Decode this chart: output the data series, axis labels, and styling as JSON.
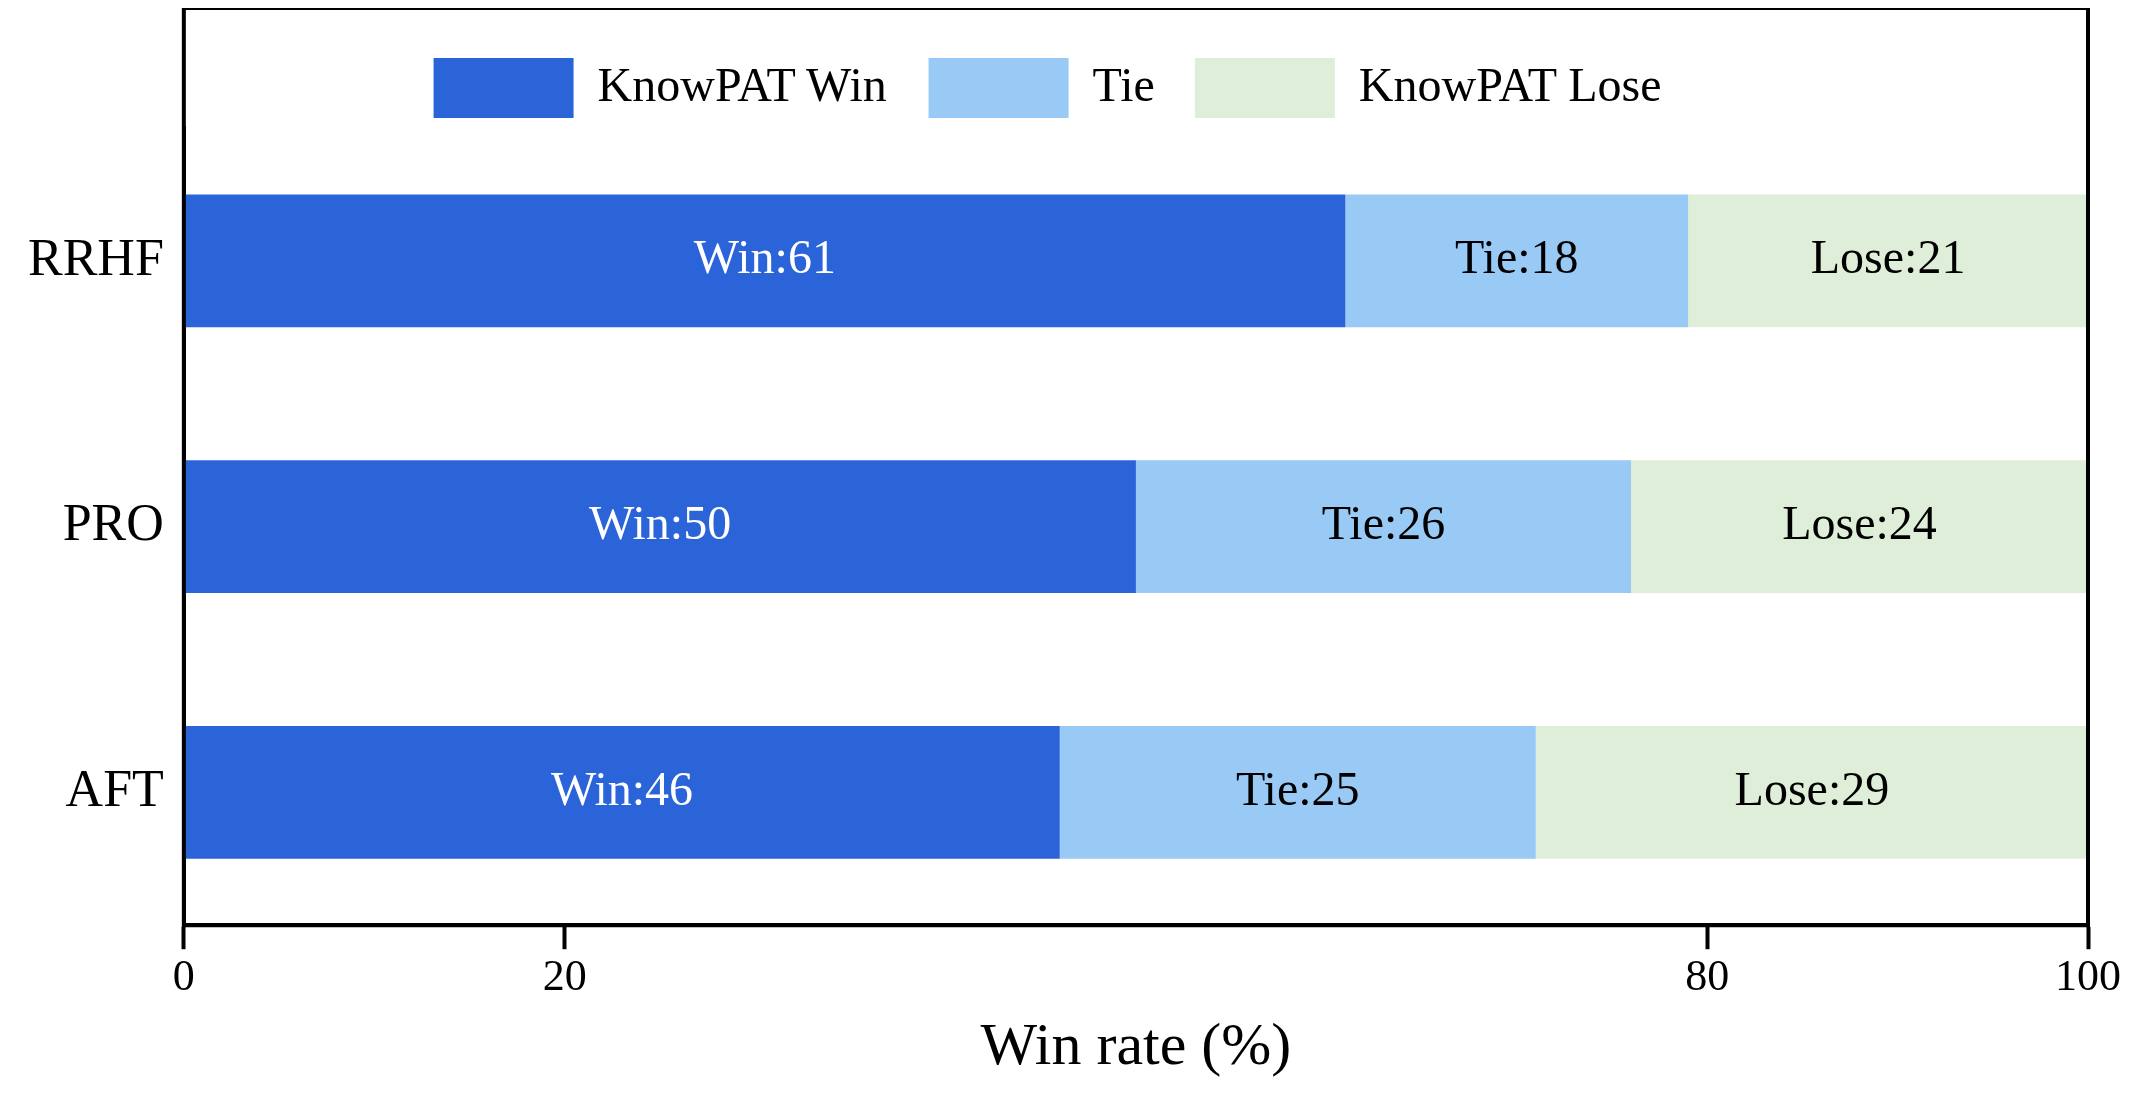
{
  "chart_data": {
    "type": "bar",
    "orientation": "horizontal",
    "stacked": true,
    "xlabel": "Win rate (%)",
    "categories": [
      "RRHF",
      "PRO",
      "AFT"
    ],
    "series": [
      {
        "name": "KnowPAT Win",
        "color": "#2a64d8",
        "values": [
          61,
          50,
          46
        ],
        "value_labels": [
          "Win:61",
          "Win:50",
          "Win:46"
        ]
      },
      {
        "name": "Tie",
        "color": "#99c9f5",
        "values": [
          18,
          26,
          25
        ],
        "value_labels": [
          "Tie:18",
          "Tie:26",
          "Tie:25"
        ]
      },
      {
        "name": "KnowPAT Lose",
        "color": "#dfeed8",
        "values": [
          21,
          24,
          29
        ],
        "value_labels": [
          "Lose:21",
          "Lose:24",
          "Lose:29"
        ]
      }
    ],
    "xlim": [
      0,
      100
    ],
    "xticks": [
      0,
      20,
      80,
      100
    ],
    "grid": false,
    "legend": "top"
  }
}
